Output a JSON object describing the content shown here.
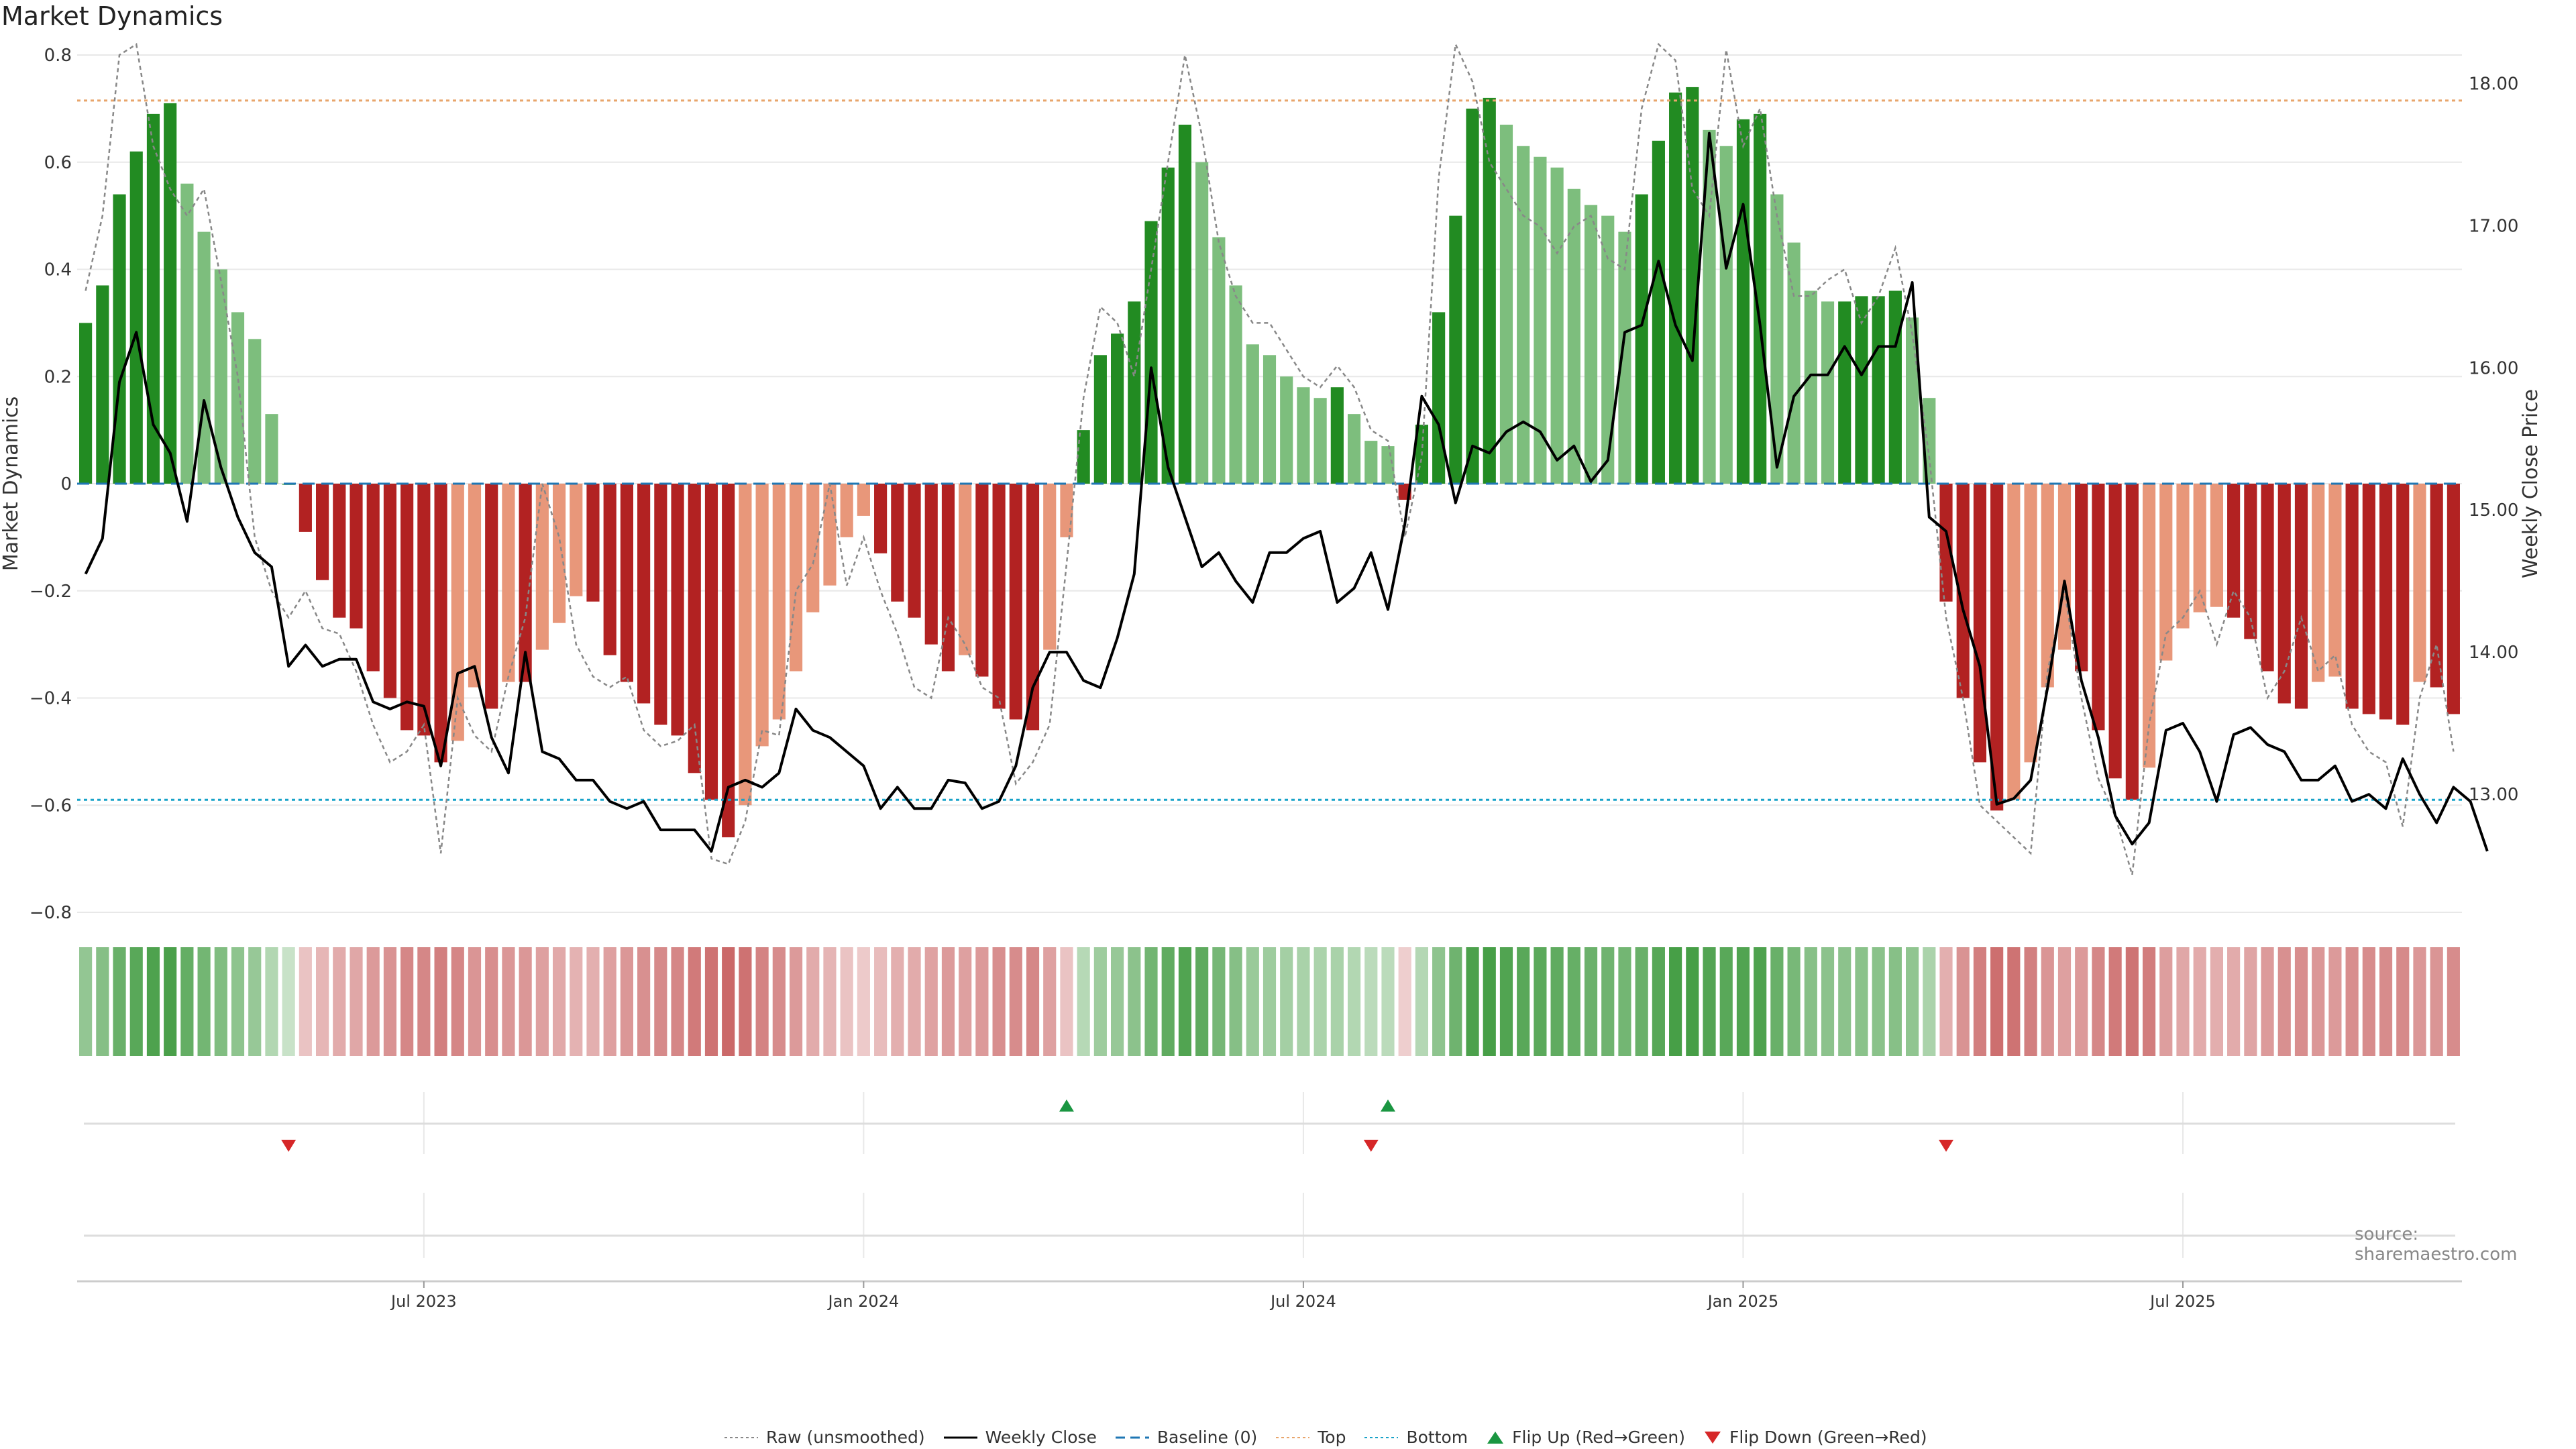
{
  "title": "Market Dynamics",
  "source": "source: sharemaestro.com",
  "colors": {
    "strong_up": "#228b22",
    "weak_up": "#7dbe7d",
    "strong_down": "#b22222",
    "weak_down": "#e8977a",
    "close_line": "#000000",
    "raw_line": "#888888",
    "baseline": "#1f77b4",
    "top": "#e8a56b",
    "bottom": "#17a2c8",
    "flip_up": "#1a9641",
    "flip_down": "#d62728",
    "grid": "#e8e8e8"
  },
  "legend": {
    "raw": "Raw (unsmoothed)",
    "close": "Weekly Close",
    "baseline": "Baseline (0)",
    "top": "Top",
    "bottom": "Bottom",
    "flip_up": "Flip Up (Red→Green)",
    "flip_down": "Flip Down (Green→Red)"
  },
  "chart_data": {
    "type": "bar",
    "title": "Market Dynamics",
    "ylabel": "Market Dynamics",
    "y2label": "Weekly Close Price",
    "ylim": [
      -0.8,
      0.8
    ],
    "y2lim": [
      12.17,
      18.2
    ],
    "yticks": [
      "0.8",
      "0.6",
      "0.4",
      "0.2",
      "0",
      "−0.2",
      "−0.4",
      "−0.6",
      "−0.8"
    ],
    "y2ticks": [
      "18.00",
      "17.00",
      "16.00",
      "15.00",
      "14.00",
      "13.00"
    ],
    "xticks": [
      {
        "label": "Jul 2023",
        "week": 20
      },
      {
        "label": "Jan 2024",
        "week": 46
      },
      {
        "label": "Jul 2024",
        "week": 72
      },
      {
        "label": "Jan 2025",
        "week": 98
      },
      {
        "label": "Jul 2025",
        "week": 124
      }
    ],
    "grid": true,
    "legend_position": "bottom-center",
    "top_level": 0.715,
    "bottom_level": -0.59,
    "baseline": 0,
    "dynamics": [
      0.3,
      0.37,
      0.54,
      0.62,
      0.69,
      0.71,
      0.56,
      0.47,
      0.4,
      0.32,
      0.27,
      0.13,
      0.0,
      -0.09,
      -0.18,
      -0.25,
      -0.27,
      -0.35,
      -0.4,
      -0.46,
      -0.47,
      -0.52,
      -0.48,
      -0.38,
      -0.42,
      -0.37,
      -0.37,
      -0.31,
      -0.26,
      -0.21,
      -0.22,
      -0.32,
      -0.37,
      -0.41,
      -0.45,
      -0.47,
      -0.54,
      -0.59,
      -0.66,
      -0.6,
      -0.49,
      -0.44,
      -0.35,
      -0.24,
      -0.19,
      -0.1,
      -0.06,
      -0.13,
      -0.22,
      -0.25,
      -0.3,
      -0.35,
      -0.32,
      -0.36,
      -0.42,
      -0.44,
      -0.46,
      -0.31,
      -0.1,
      0.1,
      0.24,
      0.28,
      0.34,
      0.49,
      0.59,
      0.67,
      0.6,
      0.46,
      0.37,
      0.26,
      0.24,
      0.2,
      0.18,
      0.16,
      0.18,
      0.13,
      0.08,
      0.07,
      -0.03,
      0.11,
      0.32,
      0.5,
      0.7,
      0.72,
      0.67,
      0.63,
      0.61,
      0.59,
      0.55,
      0.52,
      0.5,
      0.47,
      0.54,
      0.64,
      0.73,
      0.74,
      0.66,
      0.63,
      0.68,
      0.69,
      0.54,
      0.45,
      0.36,
      0.34,
      0.34,
      0.35,
      0.35,
      0.36,
      0.31,
      0.16,
      -0.22,
      -0.4,
      -0.52,
      -0.61,
      -0.59,
      -0.52,
      -0.38,
      -0.31,
      -0.35,
      -0.46,
      -0.55,
      -0.59,
      -0.53,
      -0.33,
      -0.27,
      -0.24,
      -0.23,
      -0.25,
      -0.29,
      -0.35,
      -0.41,
      -0.42,
      -0.37,
      -0.36,
      -0.42,
      -0.43,
      -0.44,
      -0.45,
      -0.37,
      -0.38,
      -0.43
    ],
    "raw": [
      0.36,
      0.5,
      0.8,
      0.82,
      0.63,
      0.55,
      0.5,
      0.55,
      0.38,
      0.2,
      -0.1,
      -0.2,
      -0.25,
      -0.2,
      -0.27,
      -0.28,
      -0.35,
      -0.45,
      -0.52,
      -0.5,
      -0.45,
      -0.69,
      -0.4,
      -0.47,
      -0.5,
      -0.36,
      -0.25,
      -0.0,
      -0.1,
      -0.3,
      -0.36,
      -0.38,
      -0.36,
      -0.46,
      -0.49,
      -0.48,
      -0.45,
      -0.7,
      -0.71,
      -0.63,
      -0.46,
      -0.47,
      -0.2,
      -0.15,
      -0.0,
      -0.19,
      -0.1,
      -0.2,
      -0.28,
      -0.38,
      -0.4,
      -0.25,
      -0.3,
      -0.38,
      -0.4,
      -0.56,
      -0.52,
      -0.45,
      -0.15,
      0.16,
      0.33,
      0.3,
      0.2,
      0.4,
      0.6,
      0.8,
      0.65,
      0.45,
      0.35,
      0.3,
      0.3,
      0.25,
      0.2,
      0.18,
      0.22,
      0.18,
      0.1,
      0.08,
      -0.1,
      0.05,
      0.57,
      0.82,
      0.75,
      0.6,
      0.55,
      0.5,
      0.48,
      0.43,
      0.48,
      0.5,
      0.42,
      0.4,
      0.7,
      0.82,
      0.79,
      0.55,
      0.5,
      0.81,
      0.63,
      0.7,
      0.5,
      0.35,
      0.35,
      0.38,
      0.4,
      0.3,
      0.35,
      0.44,
      0.28,
      0.05,
      -0.25,
      -0.4,
      -0.6,
      -0.63,
      -0.66,
      -0.69,
      -0.35,
      -0.2,
      -0.4,
      -0.55,
      -0.62,
      -0.73,
      -0.45,
      -0.28,
      -0.25,
      -0.2,
      -0.3,
      -0.2,
      -0.25,
      -0.4,
      -0.35,
      -0.25,
      -0.35,
      -0.32,
      -0.45,
      -0.5,
      -0.52,
      -0.64,
      -0.4,
      -0.3,
      -0.5
    ],
    "close": [
      14.55,
      14.8,
      15.9,
      16.25,
      15.6,
      15.4,
      14.92,
      15.77,
      15.3,
      14.95,
      14.7,
      14.6,
      13.9,
      14.05,
      13.9,
      13.95,
      13.95,
      13.65,
      13.6,
      13.65,
      13.62,
      13.2,
      13.85,
      13.9,
      13.4,
      13.15,
      14.0,
      13.3,
      13.25,
      13.1,
      13.1,
      12.95,
      12.9,
      12.95,
      12.75,
      12.75,
      12.75,
      12.6,
      13.05,
      13.1,
      13.05,
      13.15,
      13.6,
      13.45,
      13.4,
      13.3,
      13.2,
      12.9,
      13.05,
      12.9,
      12.9,
      13.1,
      13.08,
      12.9,
      12.95,
      13.2,
      13.75,
      14.0,
      14.0,
      13.8,
      13.75,
      14.1,
      14.55,
      16.0,
      15.3,
      14.95,
      14.6,
      14.7,
      14.5,
      14.35,
      14.7,
      14.7,
      14.8,
      14.85,
      14.35,
      14.45,
      14.7,
      14.3,
      14.9,
      15.8,
      15.6,
      15.05,
      15.45,
      15.4,
      15.55,
      15.62,
      15.55,
      15.35,
      15.45,
      15.2,
      15.35,
      16.25,
      16.3,
      16.75,
      16.3,
      16.05,
      17.65,
      16.7,
      17.15,
      16.3,
      15.3,
      15.8,
      15.95,
      15.95,
      16.15,
      15.95,
      16.15,
      16.15,
      16.6,
      14.95,
      14.85,
      14.3,
      13.9,
      12.93,
      12.97,
      13.1,
      13.75,
      14.5,
      13.8,
      13.4,
      12.85,
      12.65,
      12.8,
      13.45,
      13.5,
      13.3,
      12.95,
      13.42,
      13.47,
      13.35,
      13.3,
      13.1,
      13.1,
      13.2,
      12.95,
      13.0,
      12.9,
      13.25,
      13.0,
      12.8,
      13.05,
      12.95,
      12.6
    ],
    "flip_up_weeks": [
      58,
      77
    ],
    "flip_down_weeks": [
      12,
      76,
      110
    ]
  }
}
